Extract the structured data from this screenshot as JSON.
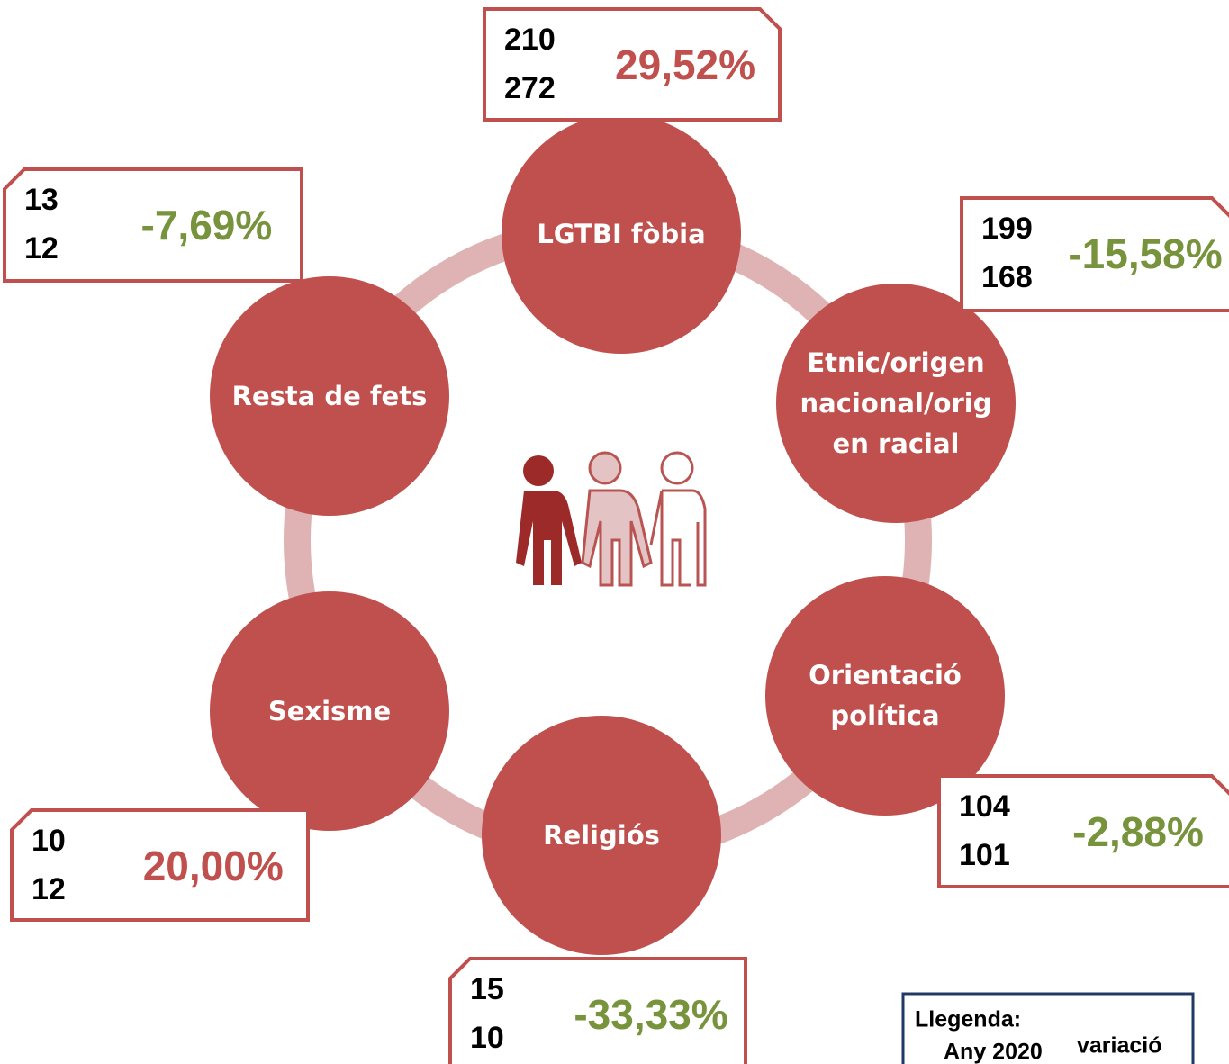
{
  "nodes": [
    {
      "label": "LGTBI fòbia",
      "year_2020": 210,
      "year_2021": 272,
      "variation": "29,52%",
      "trend": "up"
    },
    {
      "label": "Etnic/origen nacional/origen racial",
      "year_2020": 199,
      "year_2021": 168,
      "variation": "-15,58%",
      "trend": "down"
    },
    {
      "label": "Orientació política",
      "year_2020": 104,
      "year_2021": 101,
      "variation": "-2,88%",
      "trend": "down"
    },
    {
      "label": "Religiós",
      "year_2020": 15,
      "year_2021": 10,
      "variation": "-33,33%",
      "trend": "down"
    },
    {
      "label": "Sexisme",
      "year_2020": 10,
      "year_2021": 12,
      "variation": "20,00%",
      "trend": "up"
    },
    {
      "label": "Resta de fets",
      "year_2020": 13,
      "year_2021": 12,
      "variation": "-7,69%",
      "trend": "down"
    }
  ],
  "legend": {
    "title": "Llegenda:",
    "year": "Any 2020",
    "variation": "variació"
  }
}
